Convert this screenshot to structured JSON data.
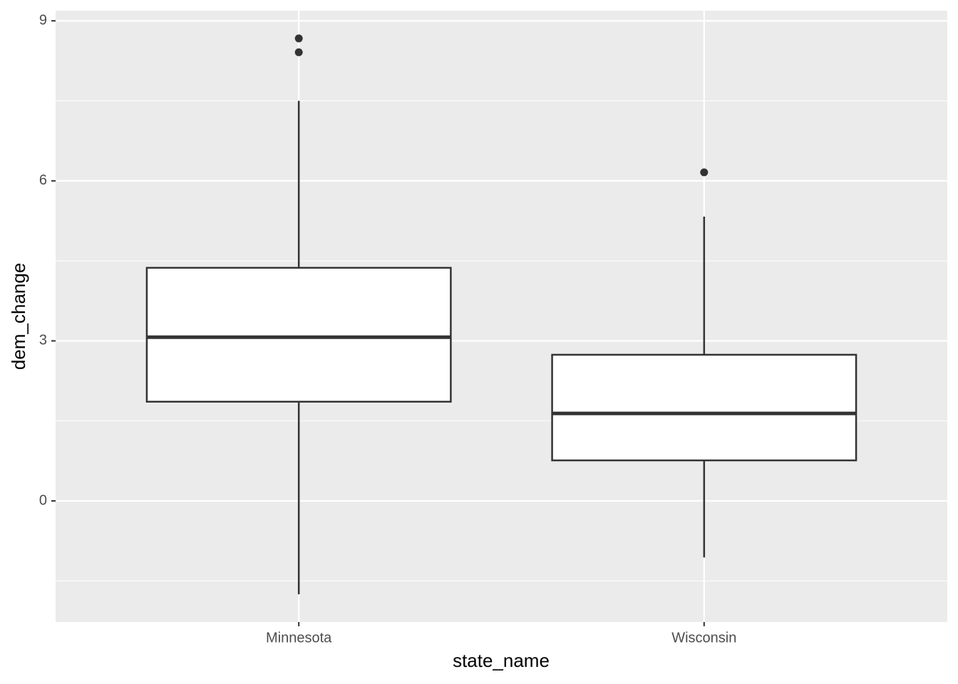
{
  "chart_data": {
    "type": "boxplot",
    "x_label": "state_name",
    "y_label": "dem_change",
    "categories": [
      "Minnesota",
      "Wisconsin"
    ],
    "boxes": [
      {
        "min": -1.75,
        "q1": 1.86,
        "median": 3.07,
        "q3": 4.37,
        "max": 7.5,
        "outliers": [
          8.67,
          8.41
        ]
      },
      {
        "min": -1.06,
        "q1": 0.76,
        "median": 1.64,
        "q3": 2.74,
        "max": 5.33,
        "outliers": [
          6.16
        ]
      }
    ],
    "ylim": [
      -2.27,
      9.19
    ],
    "yticks": [
      0,
      3,
      6,
      9
    ],
    "yminor": [
      -1.5,
      1.5,
      4.5,
      7.5
    ],
    "grid": true,
    "box_fill": "#ffffff",
    "line_color": "#333333",
    "panel_color": "#ebebeb"
  }
}
